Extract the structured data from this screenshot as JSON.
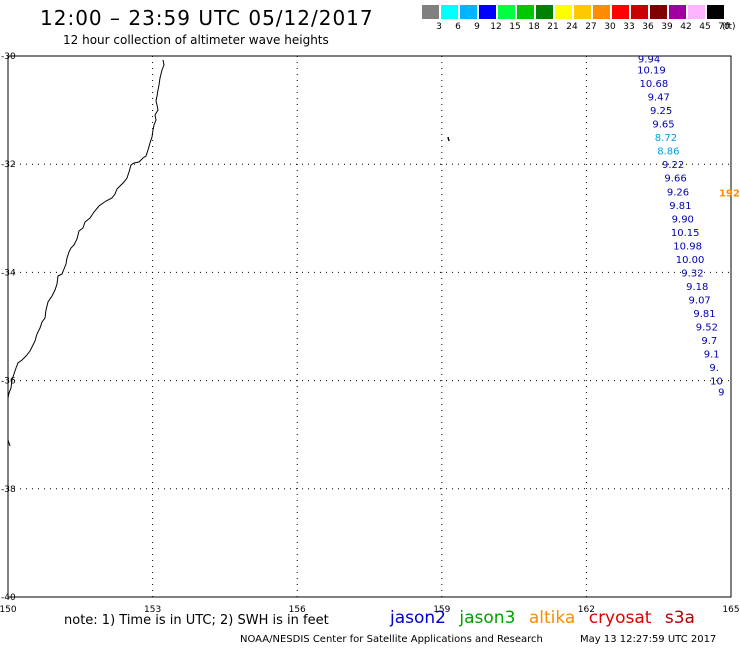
{
  "title": "12:00 – 23:59 UTC 05/12/2017",
  "subtitle": "12 hour collection of altimeter wave heights",
  "legend": {
    "colors": [
      "#808080",
      "#00ffff",
      "#00b4ff",
      "#0000ff",
      "#00ff40",
      "#00c800",
      "#008000",
      "#ffff00",
      "#ffc800",
      "#ff8c00",
      "#ff0000",
      "#c80000",
      "#800000",
      "#a000a0",
      "#ffb4ff",
      "#000000"
    ],
    "labels": [
      "3",
      "6",
      "9",
      "12",
      "15",
      "18",
      "21",
      "24",
      "27",
      "30",
      "33",
      "36",
      "39",
      "42",
      "45",
      "70"
    ],
    "unit": "(ft)"
  },
  "map": {
    "lon_range": [
      150,
      165
    ],
    "lat_range": [
      -40,
      -30
    ],
    "lon_ticks": [
      "150",
      "153",
      "156",
      "159",
      "162",
      "165"
    ],
    "lat_ticks": [
      "-30",
      "-32",
      "-34",
      "-36",
      "-38",
      "-40"
    ],
    "track": [
      {
        "lon": 163.3,
        "lat": -30.05,
        "swh": "9.94",
        "color": "#0000b4"
      },
      {
        "lon": 163.35,
        "lat": -30.25,
        "swh": "10.19",
        "color": "#0000b4"
      },
      {
        "lon": 163.4,
        "lat": -30.5,
        "swh": "10.68",
        "color": "#0000b4"
      },
      {
        "lon": 163.5,
        "lat": -30.75,
        "swh": "9.47",
        "color": "#0000b4"
      },
      {
        "lon": 163.55,
        "lat": -31.0,
        "swh": "9.25",
        "color": "#0000b4"
      },
      {
        "lon": 163.6,
        "lat": -31.25,
        "swh": "9.65",
        "color": "#0000b4"
      },
      {
        "lon": 163.65,
        "lat": -31.5,
        "swh": "8.72",
        "color": "#00a0e6"
      },
      {
        "lon": 163.7,
        "lat": -31.75,
        "swh": "8.86",
        "color": "#00a0e6"
      },
      {
        "lon": 163.8,
        "lat": -32.0,
        "swh": "9.22",
        "color": "#0000b4"
      },
      {
        "lon": 163.85,
        "lat": -32.25,
        "swh": "9.66",
        "color": "#0000b4"
      },
      {
        "lon": 163.9,
        "lat": -32.5,
        "swh": "9.26",
        "color": "#0000b4"
      },
      {
        "lon": 163.95,
        "lat": -32.75,
        "swh": "9.81",
        "color": "#0000b4"
      },
      {
        "lon": 164.0,
        "lat": -33.0,
        "swh": "9.90",
        "color": "#0000b4"
      },
      {
        "lon": 164.05,
        "lat": -33.25,
        "swh": "10.15",
        "color": "#0000b4"
      },
      {
        "lon": 164.1,
        "lat": -33.5,
        "swh": "10.98",
        "color": "#0000b4"
      },
      {
        "lon": 164.15,
        "lat": -33.75,
        "swh": "10.00",
        "color": "#0000b4"
      },
      {
        "lon": 164.2,
        "lat": -34.0,
        "swh": "9.32",
        "color": "#0000b4"
      },
      {
        "lon": 164.3,
        "lat": -34.25,
        "swh": "9.18",
        "color": "#0000b4"
      },
      {
        "lon": 164.35,
        "lat": -34.5,
        "swh": "9.07",
        "color": "#0000b4"
      },
      {
        "lon": 164.45,
        "lat": -34.75,
        "swh": "9.81",
        "color": "#0000b4"
      },
      {
        "lon": 164.5,
        "lat": -35.0,
        "swh": "9.52",
        "color": "#0000b4"
      },
      {
        "lon": 164.55,
        "lat": -35.25,
        "swh": "9.7",
        "color": "#0000b4"
      },
      {
        "lon": 164.6,
        "lat": -35.5,
        "swh": "9.1",
        "color": "#0000b4"
      },
      {
        "lon": 164.65,
        "lat": -35.75,
        "swh": "9.",
        "color": "#0000b4"
      },
      {
        "lon": 164.7,
        "lat": -36.0,
        "swh": "10",
        "color": "#0000b4"
      },
      {
        "lon": 164.8,
        "lat": -36.2,
        "swh": "9",
        "color": "#0000b4"
      }
    ],
    "altika_label": {
      "lon": 164.75,
      "lat": -32.5,
      "swh": "192",
      "color": "#ff8c00"
    }
  },
  "note": "note: 1) Time is in UTC; 2) SWH is in feet",
  "satellites": [
    {
      "name": "jason2",
      "color": "#0000c8"
    },
    {
      "name": "jason3",
      "color": "#00a000"
    },
    {
      "name": "altika",
      "color": "#ff8c00"
    },
    {
      "name": "cryosat",
      "color": "#e00000"
    },
    {
      "name": "s3a",
      "color": "#b40000"
    }
  ],
  "credit": "NOAA/NESDIS Center for Satellite Applications and Research",
  "timestamp": "May 13 12:27:59 UTC 2017"
}
